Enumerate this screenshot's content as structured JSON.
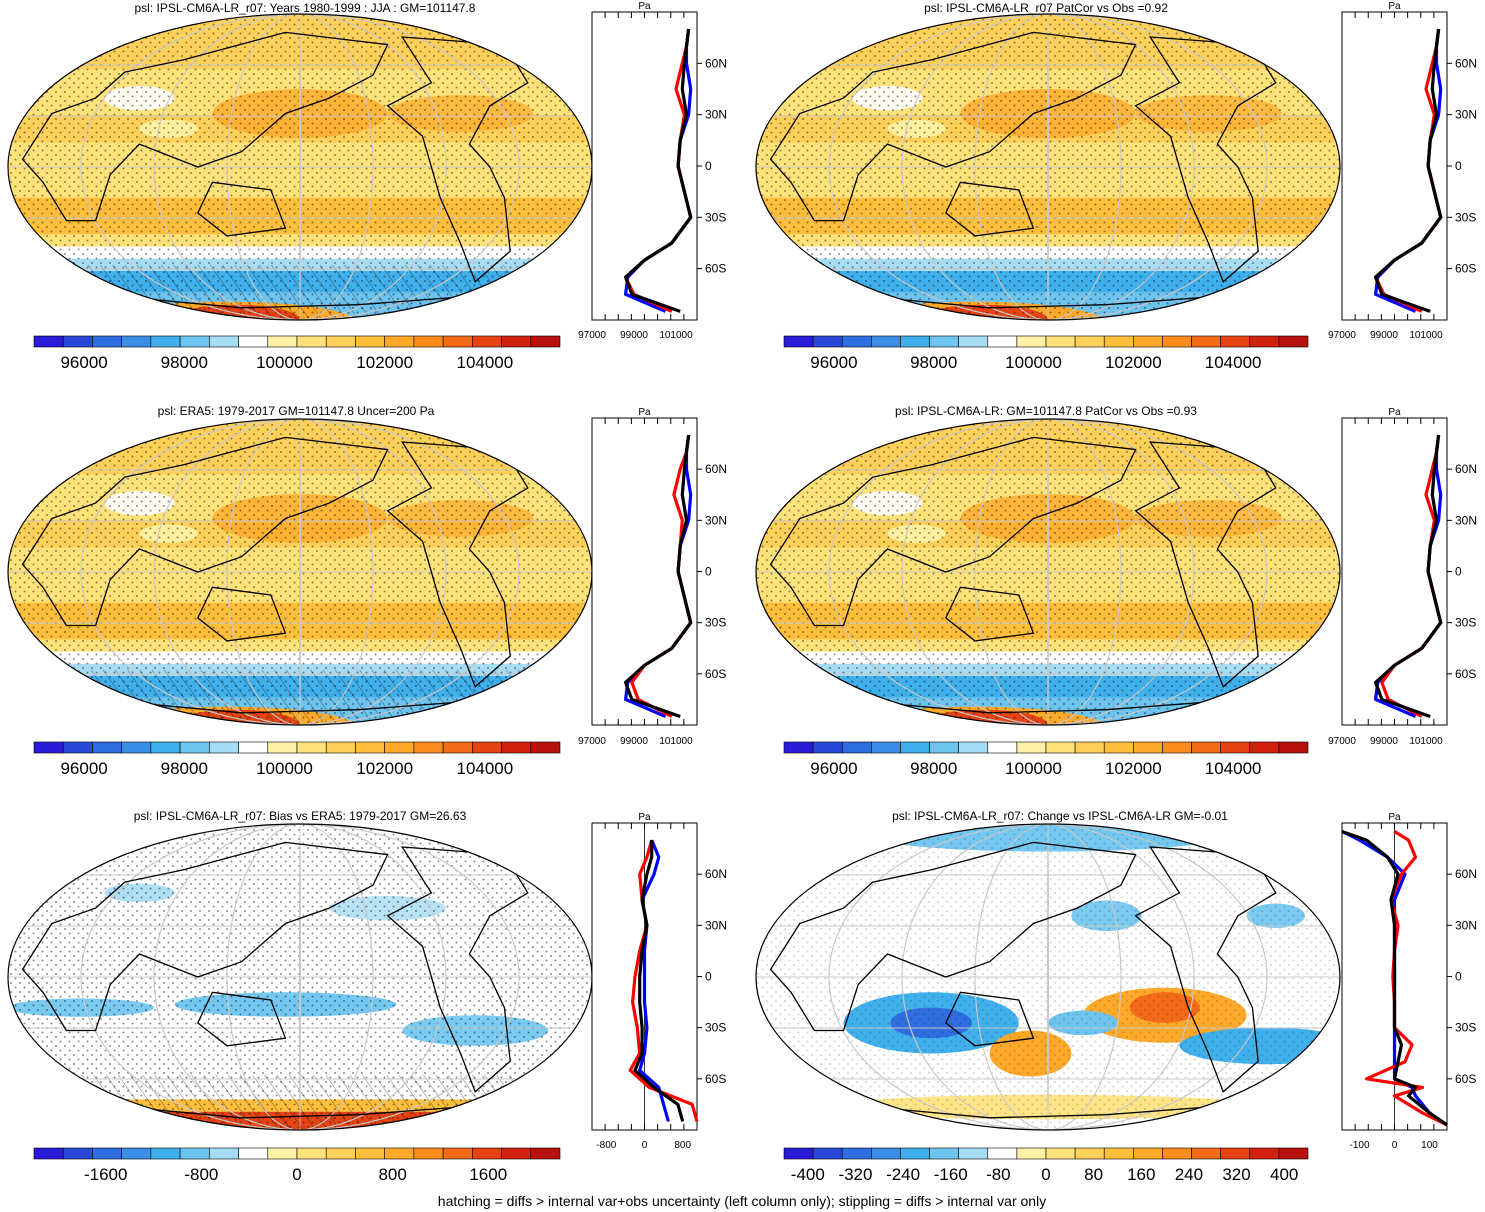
{
  "footer": "hatching = diffs > internal var+obs uncertainty (left column only); stippling = diffs > internal var only",
  "colors": {
    "palette": [
      "#2a1bd8",
      "#2a48d8",
      "#2f6ee0",
      "#3a8ee8",
      "#3fb0ec",
      "#6cc4ef",
      "#a6dcf4",
      "#ffffff",
      "#fff2a6",
      "#ffe27a",
      "#ffd15a",
      "#ffbf3c",
      "#ffa92a",
      "#fb8c1e",
      "#f36a18",
      "#e54314",
      "#d2200f",
      "#b8100c"
    ],
    "land": "#000000",
    "grid": "#c8c8c8",
    "zonal_model": "#ff0000",
    "zonal_obs": "#0000ff",
    "zonal_mean": "#000000"
  },
  "panels": [
    {
      "id": "model-mean",
      "title": "psl: IPSL-CM6A-LR_r07: Years 1980-1999 : JJA : GM=101147.8",
      "colorbar_ticks": [
        "96000",
        "98000",
        "100000",
        "102000",
        "104000"
      ],
      "zonal_axis_unit": "Pa",
      "zonal_ticks": [
        "97000",
        "99000",
        "101000"
      ],
      "lat_ticks": [
        "60N",
        "30N",
        "0",
        "30S",
        "60S"
      ]
    },
    {
      "id": "model-patcor",
      "title": "psl: IPSL-CM6A-LR_r07 PatCor vs Obs =0.92",
      "colorbar_ticks": [
        "96000",
        "98000",
        "100000",
        "102000",
        "104000"
      ],
      "zonal_axis_unit": "Pa",
      "zonal_ticks": [
        "97000",
        "99000",
        "101000"
      ],
      "lat_ticks": [
        "60N",
        "30N",
        "0",
        "30S",
        "60S"
      ]
    },
    {
      "id": "obs-mean",
      "title": "psl: ERA5: 1979-2017 GM=101147.8 Uncer=200 Pa",
      "colorbar_ticks": [
        "96000",
        "98000",
        "100000",
        "102000",
        "104000"
      ],
      "zonal_axis_unit": "Pa",
      "zonal_ticks": [
        "97000",
        "99000",
        "101000"
      ],
      "lat_ticks": [
        "60N",
        "30N",
        "0",
        "30S",
        "60S"
      ]
    },
    {
      "id": "ensemble-patcor",
      "title": "psl: IPSL-CM6A-LR: GM=101147.8 PatCor vs Obs =0.93",
      "colorbar_ticks": [
        "96000",
        "98000",
        "100000",
        "102000",
        "104000"
      ],
      "zonal_axis_unit": "Pa",
      "zonal_ticks": [
        "97000",
        "99000",
        "101000"
      ],
      "lat_ticks": [
        "60N",
        "30N",
        "0",
        "30S",
        "60S"
      ]
    },
    {
      "id": "bias",
      "title": "psl: IPSL-CM6A-LR_r07: Bias vs ERA5: 1979-2017 GM=26.63",
      "colorbar_ticks": [
        "-1600",
        "-800",
        "0",
        "800",
        "1600"
      ],
      "zonal_axis_unit": "Pa",
      "zonal_ticks": [
        "-800",
        "0",
        "800"
      ],
      "lat_ticks": [
        "60N",
        "30N",
        "0",
        "30S",
        "60S"
      ]
    },
    {
      "id": "change",
      "title": "psl: IPSL-CM6A-LR_r07: Change vs IPSL-CM6A-LR GM=-0.01",
      "colorbar_ticks": [
        "-400",
        "-320",
        "-240",
        "-160",
        "-80",
        "0",
        "80",
        "160",
        "240",
        "320",
        "400"
      ],
      "zonal_axis_unit": "Pa",
      "zonal_ticks": [
        "-100",
        "0",
        "100"
      ],
      "lat_ticks": [
        "60N",
        "30N",
        "0",
        "30S",
        "60S"
      ]
    }
  ],
  "chart_data": [
    {
      "type": "heatmap",
      "panel": "model-mean",
      "title": "psl: IPSL-CM6A-LR_r07: Years 1980-1999 : JJA : GM=101147.8",
      "color_range": [
        95000,
        105500
      ],
      "colorbar_ticks": [
        96000,
        98000,
        100000,
        102000,
        104000
      ],
      "zonal_profile": {
        "unit": "Pa",
        "xlim": [
          97000,
          102000
        ],
        "lat": [
          80,
          70,
          60,
          45,
          30,
          15,
          0,
          -15,
          -30,
          -45,
          -55,
          -65,
          -75,
          -85
        ],
        "model": [
          101600,
          101500,
          101300,
          101000,
          101400,
          101200,
          101100,
          101400,
          101700,
          100800,
          99500,
          98600,
          99000,
          100800
        ],
        "obs": [
          101600,
          101500,
          101500,
          101700,
          101600,
          101200,
          101100,
          101400,
          101700,
          100800,
          99500,
          98700,
          98600,
          100500
        ],
        "mean": [
          101600,
          101500,
          101400,
          101300,
          101500,
          101200,
          101100,
          101400,
          101700,
          100800,
          99500,
          98600,
          98900,
          101200
        ]
      }
    },
    {
      "type": "heatmap",
      "panel": "model-patcor",
      "title": "psl: IPSL-CM6A-LR_r07 PatCor vs Obs =0.92",
      "color_range": [
        95000,
        105500
      ],
      "colorbar_ticks": [
        96000,
        98000,
        100000,
        102000,
        104000
      ],
      "zonal_profile": {
        "unit": "Pa",
        "xlim": [
          97000,
          102000
        ],
        "lat": [
          80,
          70,
          60,
          45,
          30,
          15,
          0,
          -15,
          -30,
          -45,
          -55,
          -65,
          -75,
          -85
        ],
        "model": [
          101600,
          101500,
          101300,
          101000,
          101400,
          101200,
          101100,
          101400,
          101700,
          100800,
          99500,
          98600,
          99000,
          100800
        ],
        "obs": [
          101600,
          101500,
          101500,
          101700,
          101600,
          101200,
          101100,
          101400,
          101700,
          100800,
          99500,
          98700,
          98600,
          100500
        ],
        "mean": [
          101600,
          101500,
          101400,
          101300,
          101500,
          101200,
          101100,
          101400,
          101700,
          100800,
          99500,
          98600,
          98900,
          101200
        ]
      }
    },
    {
      "type": "heatmap",
      "panel": "obs-mean",
      "title": "psl: ERA5: 1979-2017 GM=101147.8 Uncer=200 Pa",
      "color_range": [
        95000,
        105500
      ],
      "colorbar_ticks": [
        96000,
        98000,
        100000,
        102000,
        104000
      ],
      "zonal_profile": {
        "unit": "Pa",
        "xlim": [
          97000,
          102000
        ],
        "lat": [
          80,
          70,
          60,
          45,
          30,
          15,
          0,
          -15,
          -30,
          -45,
          -55,
          -65,
          -75,
          -85
        ],
        "model": [
          101600,
          101500,
          101200,
          100900,
          101300,
          101200,
          101100,
          101400,
          101700,
          100800,
          99500,
          98900,
          99200,
          100800
        ],
        "obs": [
          101600,
          101500,
          101500,
          101700,
          101600,
          101200,
          101100,
          101400,
          101700,
          100800,
          99500,
          98700,
          98600,
          100500
        ],
        "mean": [
          101600,
          101500,
          101400,
          101300,
          101500,
          101200,
          101100,
          101400,
          101700,
          100800,
          99500,
          98600,
          98900,
          101200
        ]
      }
    },
    {
      "type": "heatmap",
      "panel": "ensemble-patcor",
      "title": "psl: IPSL-CM6A-LR: GM=101147.8 PatCor vs Obs =0.93",
      "color_range": [
        95000,
        105500
      ],
      "colorbar_ticks": [
        96000,
        98000,
        100000,
        102000,
        104000
      ],
      "zonal_profile": {
        "unit": "Pa",
        "xlim": [
          97000,
          102000
        ],
        "lat": [
          80,
          70,
          60,
          45,
          30,
          15,
          0,
          -15,
          -30,
          -45,
          -55,
          -65,
          -75,
          -85
        ],
        "model": [
          101600,
          101500,
          101300,
          101000,
          101400,
          101200,
          101100,
          101400,
          101700,
          100800,
          99500,
          98900,
          99200,
          100800
        ],
        "obs": [
          101600,
          101500,
          101500,
          101700,
          101600,
          101200,
          101100,
          101400,
          101700,
          100800,
          99500,
          98700,
          98600,
          100500
        ],
        "mean": [
          101600,
          101500,
          101400,
          101300,
          101500,
          101200,
          101100,
          101400,
          101700,
          100800,
          99500,
          98600,
          98900,
          101200
        ]
      }
    },
    {
      "type": "heatmap",
      "panel": "bias",
      "title": "psl: IPSL-CM6A-LR_r07: Bias vs ERA5: 1979-2017 GM=26.63",
      "color_range": [
        -2200,
        2200
      ],
      "colorbar_ticks": [
        -1600,
        -800,
        0,
        800,
        1600
      ],
      "zonal_profile": {
        "unit": "Pa",
        "xlim": [
          -1100,
          1100
        ],
        "lat": [
          80,
          70,
          60,
          45,
          30,
          15,
          0,
          -15,
          -30,
          -45,
          -55,
          -65,
          -75,
          -85
        ],
        "model": [
          150,
          50,
          -100,
          -50,
          50,
          -100,
          -200,
          -250,
          -150,
          -100,
          -300,
          100,
          1000,
          1100
        ],
        "obs": [
          150,
          300,
          200,
          -50,
          50,
          0,
          0,
          0,
          50,
          0,
          -100,
          300,
          400,
          500
        ],
        "mean": [
          150,
          150,
          50,
          -50,
          50,
          -50,
          -100,
          -100,
          -50,
          -50,
          -200,
          200,
          700,
          800
        ]
      }
    },
    {
      "type": "heatmap",
      "panel": "change",
      "title": "psl: IPSL-CM6A-LR_r07: Change vs IPSL-CM6A-LR GM=-0.01",
      "color_range": [
        -440,
        440
      ],
      "colorbar_ticks": [
        -400,
        -320,
        -240,
        -160,
        -80,
        0,
        80,
        160,
        240,
        320,
        400
      ],
      "zonal_profile": {
        "unit": "Pa",
        "xlim": [
          -150,
          150
        ],
        "lat": [
          85,
          80,
          70,
          60,
          45,
          30,
          15,
          0,
          -15,
          -30,
          -40,
          -50,
          -60,
          -65,
          -70,
          -80,
          -87
        ],
        "model": [
          0,
          40,
          60,
          20,
          -10,
          10,
          0,
          -5,
          0,
          0,
          50,
          30,
          -80,
          80,
          0,
          80,
          150
        ],
        "obs": [
          -150,
          -100,
          -20,
          30,
          0,
          0,
          0,
          0,
          0,
          0,
          0,
          0,
          0,
          50,
          60,
          100,
          150
        ],
        "mean": [
          -150,
          -80,
          -20,
          10,
          -10,
          0,
          0,
          0,
          0,
          0,
          20,
          10,
          0,
          60,
          40,
          100,
          150
        ]
      }
    }
  ]
}
